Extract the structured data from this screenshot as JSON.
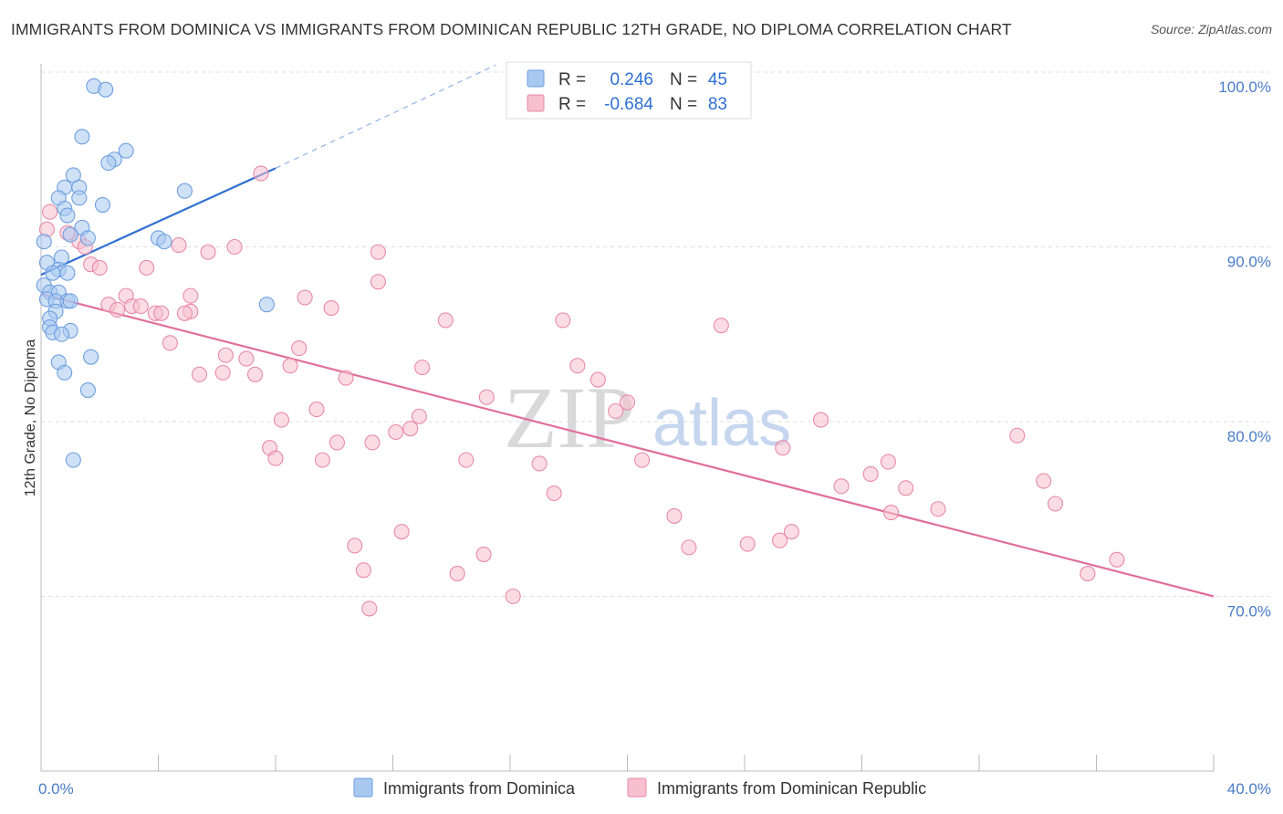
{
  "title": "IMMIGRANTS FROM DOMINICA VS IMMIGRANTS FROM DOMINICAN REPUBLIC 12TH GRADE, NO DIPLOMA CORRELATION CHART",
  "source": "Source: ZipAtlas.com",
  "watermark": {
    "zip": "ZIP",
    "atlas": "atlas"
  },
  "stats": {
    "r_label": "R =",
    "n_label": "N =",
    "rows": [
      {
        "r": "0.246",
        "n": "45",
        "color": "#a8c8f0",
        "stroke": "#6d9fe0"
      },
      {
        "r": "-0.684",
        "n": "83",
        "color": "#f7bfd0",
        "stroke": "#e88aa8"
      }
    ]
  },
  "chart_data": {
    "type": "scatter",
    "title": "IMMIGRANTS FROM DOMINICA VS IMMIGRANTS FROM DOMINICAN REPUBLIC 12TH GRADE, NO DIPLOMA CORRELATION CHART",
    "xlabel": "",
    "ylabel": "12th Grade, No Diploma",
    "xlim": [
      0,
      40
    ],
    "ylim": [
      60,
      102
    ],
    "x_ticks": [
      {
        "v": 0,
        "label": "0.0%"
      },
      {
        "v": 40,
        "label": "40.0%"
      }
    ],
    "y_ticks": [
      {
        "v": 70,
        "label": "70.0%"
      },
      {
        "v": 80,
        "label": "80.0%"
      },
      {
        "v": 90,
        "label": "90.0%"
      },
      {
        "v": 100,
        "label": "100.0%"
      }
    ],
    "grid": "horizontal-dashed",
    "legend_position": "bottom",
    "series": [
      {
        "name": "Immigrants from Dominica",
        "color": "#a8c8f0",
        "stroke": "#6d9fe0",
        "trend": {
          "x0": 0,
          "y0": 88.4,
          "x1": 8,
          "y1": 94.5,
          "dash_x1": 15.5,
          "dash_y1": 100.4,
          "color": "#2f6fd1"
        },
        "points": [
          [
            1.8,
            99.2
          ],
          [
            2.2,
            99.0
          ],
          [
            1.4,
            96.3
          ],
          [
            2.9,
            95.5
          ],
          [
            2.5,
            95.0
          ],
          [
            2.3,
            94.8
          ],
          [
            1.1,
            94.1
          ],
          [
            4.9,
            93.2
          ],
          [
            0.8,
            93.4
          ],
          [
            1.3,
            93.4
          ],
          [
            0.6,
            92.8
          ],
          [
            1.3,
            92.8
          ],
          [
            2.1,
            92.4
          ],
          [
            0.8,
            92.2
          ],
          [
            0.9,
            91.8
          ],
          [
            1.4,
            91.1
          ],
          [
            1.0,
            90.7
          ],
          [
            1.6,
            90.5
          ],
          [
            4.0,
            90.5
          ],
          [
            4.2,
            90.3
          ],
          [
            0.1,
            90.3
          ],
          [
            0.7,
            89.4
          ],
          [
            0.2,
            89.1
          ],
          [
            0.6,
            88.7
          ],
          [
            0.4,
            88.5
          ],
          [
            0.9,
            88.5
          ],
          [
            0.1,
            87.8
          ],
          [
            0.3,
            87.4
          ],
          [
            0.6,
            87.4
          ],
          [
            0.2,
            87.0
          ],
          [
            0.5,
            86.9
          ],
          [
            0.9,
            86.9
          ],
          [
            1.0,
            86.9
          ],
          [
            7.7,
            86.7
          ],
          [
            0.5,
            86.3
          ],
          [
            0.3,
            85.9
          ],
          [
            0.3,
            85.4
          ],
          [
            1.0,
            85.2
          ],
          [
            0.4,
            85.1
          ],
          [
            0.7,
            85.0
          ],
          [
            1.7,
            83.7
          ],
          [
            0.6,
            83.4
          ],
          [
            0.8,
            82.8
          ],
          [
            1.6,
            81.8
          ],
          [
            1.1,
            77.8
          ]
        ]
      },
      {
        "name": "Immigrants from Dominican Republic",
        "color": "#f7bfd0",
        "stroke": "#e88aa8",
        "trend": {
          "x0": 0,
          "y0": 87.3,
          "x1": 40,
          "y1": 70.0,
          "color": "#e0709a"
        },
        "points": [
          [
            0.3,
            92.0
          ],
          [
            0.2,
            91.0
          ],
          [
            0.9,
            90.8
          ],
          [
            7.5,
            94.2
          ],
          [
            1.3,
            90.3
          ],
          [
            1.5,
            90.0
          ],
          [
            4.7,
            90.1
          ],
          [
            5.7,
            89.7
          ],
          [
            6.6,
            90.0
          ],
          [
            11.5,
            89.7
          ],
          [
            1.7,
            89.0
          ],
          [
            2.0,
            88.8
          ],
          [
            3.6,
            88.8
          ],
          [
            11.5,
            88.0
          ],
          [
            5.1,
            87.2
          ],
          [
            9.0,
            87.1
          ],
          [
            2.3,
            86.7
          ],
          [
            2.9,
            87.2
          ],
          [
            3.1,
            86.6
          ],
          [
            2.6,
            86.4
          ],
          [
            3.4,
            86.6
          ],
          [
            3.9,
            86.2
          ],
          [
            4.1,
            86.2
          ],
          [
            5.1,
            86.3
          ],
          [
            4.9,
            86.2
          ],
          [
            9.9,
            86.5
          ],
          [
            13.8,
            85.8
          ],
          [
            17.8,
            85.8
          ],
          [
            23.2,
            85.5
          ],
          [
            4.4,
            84.5
          ],
          [
            8.8,
            84.2
          ],
          [
            6.3,
            83.8
          ],
          [
            7.0,
            83.6
          ],
          [
            8.5,
            83.2
          ],
          [
            13.0,
            83.1
          ],
          [
            18.3,
            83.2
          ],
          [
            5.4,
            82.7
          ],
          [
            6.2,
            82.8
          ],
          [
            7.3,
            82.7
          ],
          [
            10.4,
            82.5
          ],
          [
            19.0,
            82.4
          ],
          [
            15.2,
            81.4
          ],
          [
            20.0,
            81.1
          ],
          [
            19.6,
            80.6
          ],
          [
            9.4,
            80.7
          ],
          [
            12.9,
            80.3
          ],
          [
            26.6,
            80.1
          ],
          [
            8.2,
            80.1
          ],
          [
            12.6,
            79.6
          ],
          [
            12.1,
            79.4
          ],
          [
            33.3,
            79.2
          ],
          [
            10.1,
            78.8
          ],
          [
            11.3,
            78.8
          ],
          [
            7.8,
            78.5
          ],
          [
            25.3,
            78.5
          ],
          [
            8.0,
            77.9
          ],
          [
            9.6,
            77.8
          ],
          [
            14.5,
            77.8
          ],
          [
            20.5,
            77.8
          ],
          [
            17.0,
            77.6
          ],
          [
            28.9,
            77.7
          ],
          [
            28.3,
            77.0
          ],
          [
            34.2,
            76.6
          ],
          [
            27.3,
            76.3
          ],
          [
            29.5,
            76.2
          ],
          [
            17.5,
            75.9
          ],
          [
            34.6,
            75.3
          ],
          [
            30.6,
            75.0
          ],
          [
            29.0,
            74.8
          ],
          [
            21.6,
            74.6
          ],
          [
            12.3,
            73.7
          ],
          [
            25.6,
            73.7
          ],
          [
            25.2,
            73.2
          ],
          [
            10.7,
            72.9
          ],
          [
            22.1,
            72.8
          ],
          [
            15.1,
            72.4
          ],
          [
            36.7,
            72.1
          ],
          [
            11.0,
            71.5
          ],
          [
            14.2,
            71.3
          ],
          [
            35.7,
            71.3
          ],
          [
            16.1,
            70.0
          ],
          [
            11.2,
            69.3
          ],
          [
            24.1,
            73.0
          ]
        ]
      }
    ]
  },
  "legend": {
    "items": [
      {
        "label": "Immigrants from Dominica",
        "color": "#a8c8f0",
        "stroke": "#6d9fe0"
      },
      {
        "label": "Immigrants from Dominican Republic",
        "color": "#f7bfd0",
        "stroke": "#e88aa8"
      }
    ]
  }
}
